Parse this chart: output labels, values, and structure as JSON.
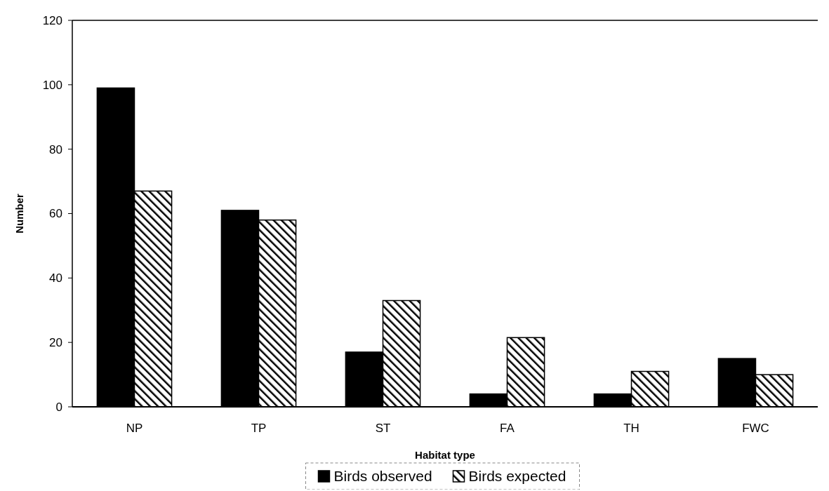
{
  "chart_data": {
    "type": "bar",
    "xlabel": "Habitat type",
    "ylabel": "Number",
    "categories": [
      "NP",
      "TP",
      "ST",
      "FA",
      "TH",
      "FWC"
    ],
    "series": [
      {
        "name": "Birds observed",
        "color": "#000000",
        "values": [
          99,
          61,
          17,
          4,
          4,
          15
        ]
      },
      {
        "name": "Birds expected",
        "color": "#000000",
        "values": [
          67,
          58,
          33,
          21.5,
          11,
          10
        ]
      }
    ],
    "ylim": [
      0,
      120
    ],
    "yticks": [
      0,
      20,
      40,
      60,
      80,
      100,
      120
    ],
    "grid": false,
    "legend": "bottom"
  }
}
